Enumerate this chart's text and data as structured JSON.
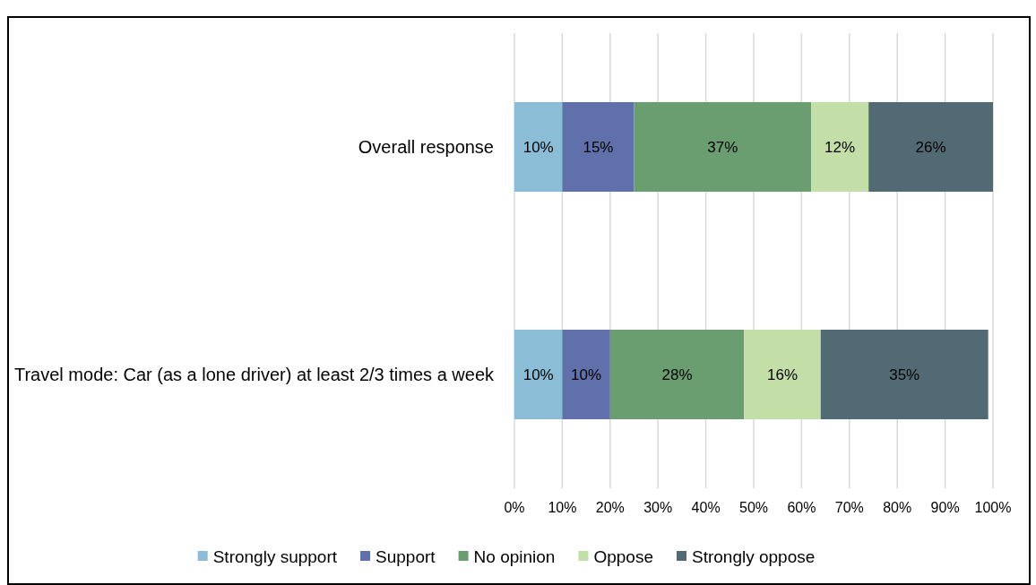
{
  "chart_data": {
    "type": "bar",
    "orientation": "horizontal",
    "stacked": true,
    "grid": "x",
    "legend": "bottom",
    "categories": [
      "Overall response",
      "Travel mode: Car (as a lone driver) at least 2/3 times a week"
    ],
    "xlim": [
      0,
      100
    ],
    "xticks": [
      {
        "value": 0,
        "label": "0%"
      },
      {
        "value": 10,
        "label": "10%"
      },
      {
        "value": 20,
        "label": "20%"
      },
      {
        "value": 30,
        "label": "30%"
      },
      {
        "value": 40,
        "label": "40%"
      },
      {
        "value": 50,
        "label": "50%"
      },
      {
        "value": 60,
        "label": "60%"
      },
      {
        "value": 70,
        "label": "70%"
      },
      {
        "value": 80,
        "label": "80%"
      },
      {
        "value": 90,
        "label": "90%"
      },
      {
        "value": 100,
        "label": "100%"
      }
    ],
    "series": [
      {
        "name": "Strongly support",
        "color": "#8bbdd6",
        "values": [
          10,
          10
        ],
        "value_labels": [
          "10%",
          "10%"
        ]
      },
      {
        "name": "Support",
        "color": "#6070ab",
        "values": [
          15,
          10
        ],
        "value_labels": [
          "15%",
          "10%"
        ]
      },
      {
        "name": "No opinion",
        "color": "#6a9e70",
        "values": [
          37,
          28
        ],
        "value_labels": [
          "37%",
          "28%"
        ]
      },
      {
        "name": "Oppose",
        "color": "#c4dea7",
        "values": [
          12,
          16
        ],
        "value_labels": [
          "12%",
          "16%"
        ]
      },
      {
        "name": "Strongly oppose",
        "color": "#526a73",
        "values": [
          26,
          35
        ],
        "value_labels": [
          "26%",
          "35%"
        ]
      }
    ]
  }
}
